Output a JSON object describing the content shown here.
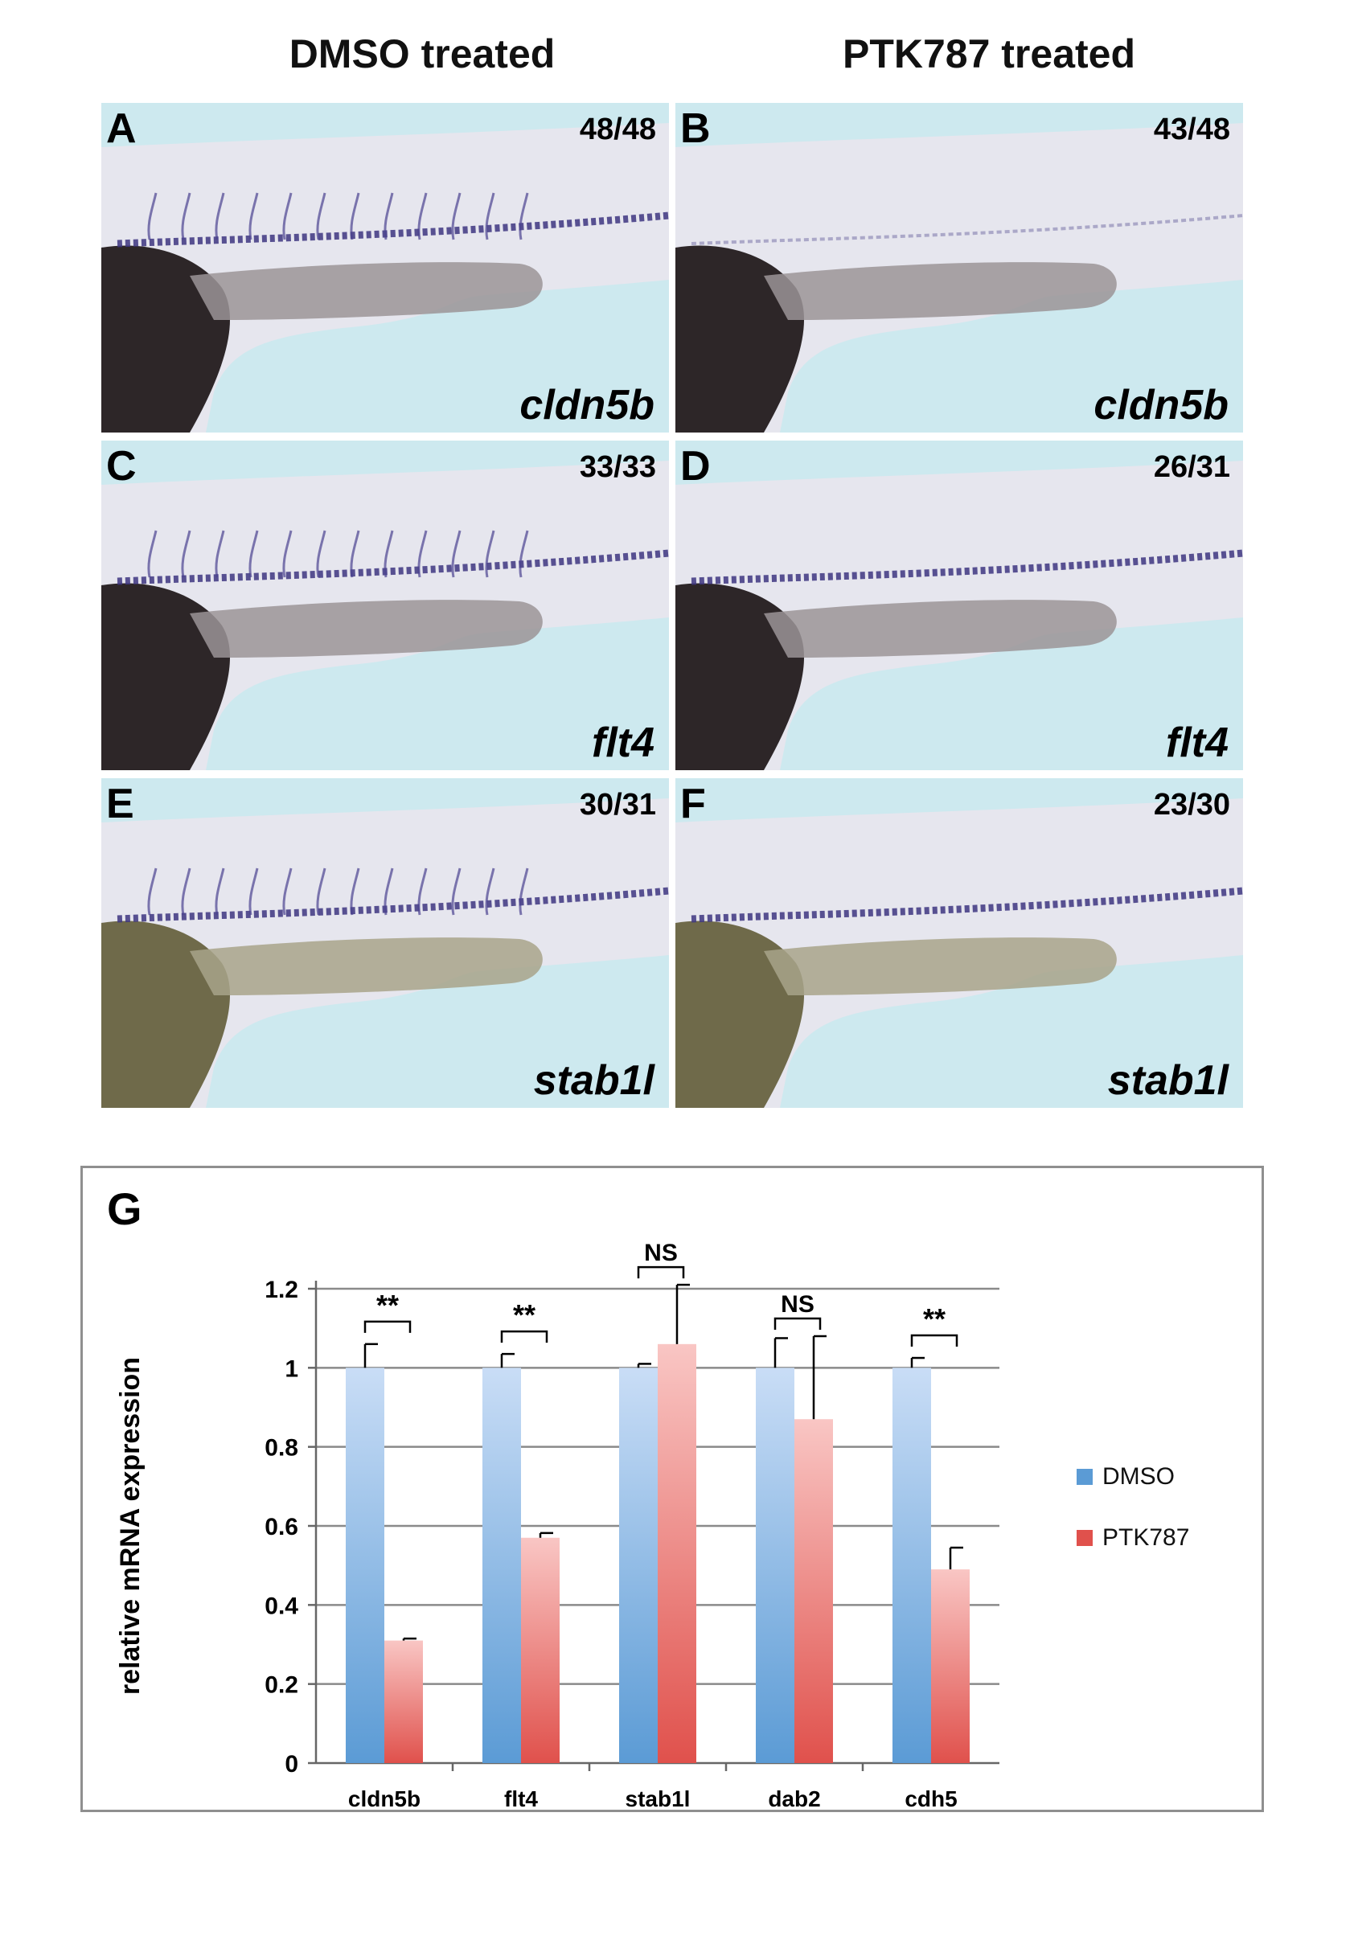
{
  "columns": [
    "DMSO treated",
    "PTK787 treated"
  ],
  "panels": [
    {
      "letter": "A",
      "count": "48/48",
      "gene": "cldn5b"
    },
    {
      "letter": "B",
      "count": "43/48",
      "gene": "cldn5b"
    },
    {
      "letter": "C",
      "count": "33/33",
      "gene": "flt4"
    },
    {
      "letter": "D",
      "count": "26/31",
      "gene": "flt4"
    },
    {
      "letter": "E",
      "count": "30/31",
      "gene": "stab1l"
    },
    {
      "letter": "F",
      "count": "23/30",
      "gene": "stab1l"
    }
  ],
  "chart_data": {
    "panel_label": "G",
    "type": "bar",
    "ylabel": "relative mRNA expression",
    "categories": [
      "cldn5b",
      "flt4",
      "stab1l",
      "dab2",
      "cdh5"
    ],
    "ylim": [
      0,
      1.2
    ],
    "yticks": [
      "0",
      "0.2",
      "0.4",
      "0.6",
      "0.8",
      "1",
      "1.2"
    ],
    "grid": true,
    "legend_position": "right",
    "series": [
      {
        "name": "DMSO",
        "values": [
          1,
          1,
          1,
          1,
          1
        ],
        "errors": [
          0.06,
          0.035,
          0.01,
          0.075,
          0.025
        ],
        "color": "#5b9bd5"
      },
      {
        "name": "PTK787",
        "values": [
          0.31,
          0.57,
          1.06,
          0.87,
          0.49
        ],
        "errors": [
          0.005,
          0.012,
          0.15,
          0.21,
          0.055
        ],
        "color": "#e0514c"
      }
    ],
    "significance": [
      "**",
      "**",
      "NS",
      "NS",
      "**"
    ]
  }
}
